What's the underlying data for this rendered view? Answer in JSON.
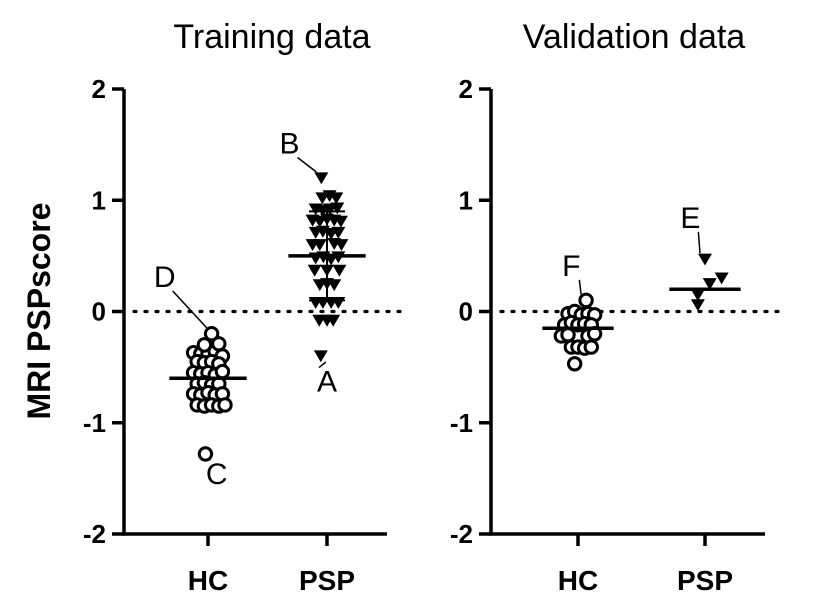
{
  "chart_data": {
    "type": "scatter",
    "ylabel": "MRI PSPscore",
    "ylim": [
      -2,
      2
    ],
    "yticks": [
      "-2",
      "-1",
      "0",
      "1",
      "2"
    ],
    "reference_line": {
      "y": 0,
      "style": "dotted"
    },
    "panels": [
      {
        "title": "Training data",
        "categories": [
          "HC",
          "PSP"
        ],
        "groups": [
          {
            "name": "HC",
            "marker": "open-circle",
            "points": [
              {
                "x": -0.28,
                "y": -0.37
              },
              {
                "x": -0.14,
                "y": -0.38
              },
              {
                "x": 0.0,
                "y": -0.38
              },
              {
                "x": 0.14,
                "y": -0.36
              },
              {
                "x": 0.28,
                "y": -0.4
              },
              {
                "x": -0.21,
                "y": -0.45
              },
              {
                "x": -0.07,
                "y": -0.46
              },
              {
                "x": 0.07,
                "y": -0.45
              },
              {
                "x": 0.21,
                "y": -0.47
              },
              {
                "x": -0.28,
                "y": -0.55
              },
              {
                "x": -0.14,
                "y": -0.56
              },
              {
                "x": 0.0,
                "y": -0.55
              },
              {
                "x": 0.14,
                "y": -0.57
              },
              {
                "x": 0.28,
                "y": -0.54
              },
              {
                "x": -0.21,
                "y": -0.65
              },
              {
                "x": -0.07,
                "y": -0.64
              },
              {
                "x": 0.07,
                "y": -0.66
              },
              {
                "x": 0.21,
                "y": -0.65
              },
              {
                "x": -0.28,
                "y": -0.74
              },
              {
                "x": -0.14,
                "y": -0.75
              },
              {
                "x": 0.0,
                "y": -0.73
              },
              {
                "x": 0.14,
                "y": -0.75
              },
              {
                "x": 0.28,
                "y": -0.74
              },
              {
                "x": -0.21,
                "y": -0.84
              },
              {
                "x": -0.07,
                "y": -0.85
              },
              {
                "x": 0.07,
                "y": -0.84
              },
              {
                "x": 0.21,
                "y": -0.85
              },
              {
                "x": 0.33,
                "y": -0.84
              },
              {
                "x": 0.07,
                "y": -0.2
              },
              {
                "x": -0.07,
                "y": -0.3
              },
              {
                "x": 0.21,
                "y": -0.29
              },
              {
                "x": -0.05,
                "y": -1.28
              }
            ],
            "mean": -0.6
          },
          {
            "name": "PSP",
            "marker": "filled-triangle-down",
            "points": [
              {
                "x": -0.09,
                "y": 1.02
              },
              {
                "x": 0.05,
                "y": 1.04
              },
              {
                "x": 0.18,
                "y": 1.02
              },
              {
                "x": -0.22,
                "y": 0.92
              },
              {
                "x": -0.08,
                "y": 0.91
              },
              {
                "x": 0.06,
                "y": 0.92
              },
              {
                "x": 0.2,
                "y": 0.93
              },
              {
                "x": -0.28,
                "y": 0.82
              },
              {
                "x": -0.14,
                "y": 0.81
              },
              {
                "x": 0.0,
                "y": 0.83
              },
              {
                "x": 0.14,
                "y": 0.82
              },
              {
                "x": 0.27,
                "y": 0.81
              },
              {
                "x": -0.22,
                "y": 0.71
              },
              {
                "x": -0.08,
                "y": 0.72
              },
              {
                "x": 0.08,
                "y": 0.7
              },
              {
                "x": 0.22,
                "y": 0.71
              },
              {
                "x": -0.28,
                "y": 0.6
              },
              {
                "x": -0.14,
                "y": 0.6
              },
              {
                "x": 0.14,
                "y": 0.61
              },
              {
                "x": 0.28,
                "y": 0.6
              },
              {
                "x": -0.22,
                "y": 0.48
              },
              {
                "x": -0.07,
                "y": 0.49
              },
              {
                "x": 0.08,
                "y": 0.47
              },
              {
                "x": 0.22,
                "y": 0.49
              },
              {
                "x": -0.24,
                "y": 0.37
              },
              {
                "x": 0.0,
                "y": 0.37
              },
              {
                "x": 0.24,
                "y": 0.37
              },
              {
                "x": -0.14,
                "y": 0.24
              },
              {
                "x": 0.0,
                "y": 0.25
              },
              {
                "x": 0.14,
                "y": 0.24
              },
              {
                "x": -0.22,
                "y": 0.08
              },
              {
                "x": -0.08,
                "y": 0.08
              },
              {
                "x": 0.08,
                "y": 0.08
              },
              {
                "x": 0.22,
                "y": 0.08
              },
              {
                "x": -0.15,
                "y": -0.08
              },
              {
                "x": 0.0,
                "y": -0.08
              },
              {
                "x": 0.12,
                "y": -0.08
              },
              {
                "x": -0.11,
                "y": 1.2
              },
              {
                "x": -0.12,
                "y": -0.4
              }
            ],
            "mean": 0.5,
            "sd_upper": 0.9,
            "sd_lower": 0.1
          }
        ],
        "annotations": [
          {
            "label": "D",
            "group": 0,
            "point_y": -0.2,
            "label_x": -0.6,
            "label_y": 0.22
          },
          {
            "label": "C",
            "group": 0,
            "point_y": -1.28,
            "label_x": 0.12,
            "label_y": -1.55
          },
          {
            "label": "B",
            "group": 1,
            "point_y": 1.2,
            "label_x": -0.52,
            "label_y": 1.42
          },
          {
            "label": "A",
            "group": 1,
            "point_y": -0.4,
            "label_x": 0.0,
            "label_y": -0.72
          }
        ]
      },
      {
        "title": "Validation data",
        "categories": [
          "HC",
          "PSP"
        ],
        "groups": [
          {
            "name": "HC",
            "marker": "open-circle",
            "points": [
              {
                "x": -0.21,
                "y": -0.02
              },
              {
                "x": -0.07,
                "y": 0.0
              },
              {
                "x": 0.07,
                "y": -0.03
              },
              {
                "x": 0.21,
                "y": -0.02
              },
              {
                "x": 0.35,
                "y": -0.03
              },
              {
                "x": -0.28,
                "y": -0.12
              },
              {
                "x": -0.14,
                "y": -0.1
              },
              {
                "x": 0.0,
                "y": -0.12
              },
              {
                "x": 0.14,
                "y": -0.11
              },
              {
                "x": 0.28,
                "y": -0.12
              },
              {
                "x": -0.35,
                "y": -0.22
              },
              {
                "x": -0.21,
                "y": -0.21
              },
              {
                "x": 0.21,
                "y": -0.22
              },
              {
                "x": 0.35,
                "y": -0.2
              },
              {
                "x": -0.14,
                "y": -0.32
              },
              {
                "x": 0.0,
                "y": -0.32
              },
              {
                "x": 0.14,
                "y": -0.33
              },
              {
                "x": 0.28,
                "y": -0.32
              },
              {
                "x": -0.07,
                "y": -0.47
              },
              {
                "x": 0.17,
                "y": 0.1
              }
            ],
            "mean": -0.15
          },
          {
            "name": "PSP",
            "marker": "filled-triangle-down",
            "points": [
              {
                "x": -0.15,
                "y": 0.15
              },
              {
                "x": 0.1,
                "y": 0.25
              },
              {
                "x": 0.35,
                "y": 0.3
              },
              {
                "x": -0.15,
                "y": 0.06
              },
              {
                "x": 0.0,
                "y": 0.47
              }
            ],
            "mean": 0.2
          }
        ],
        "annotations": [
          {
            "label": "F",
            "group": 0,
            "point_y": 0.1,
            "label_x": -0.1,
            "label_y": 0.32
          },
          {
            "label": "E",
            "group": 1,
            "point_y": 0.47,
            "label_x": -0.22,
            "label_y": 0.75
          }
        ]
      }
    ]
  }
}
